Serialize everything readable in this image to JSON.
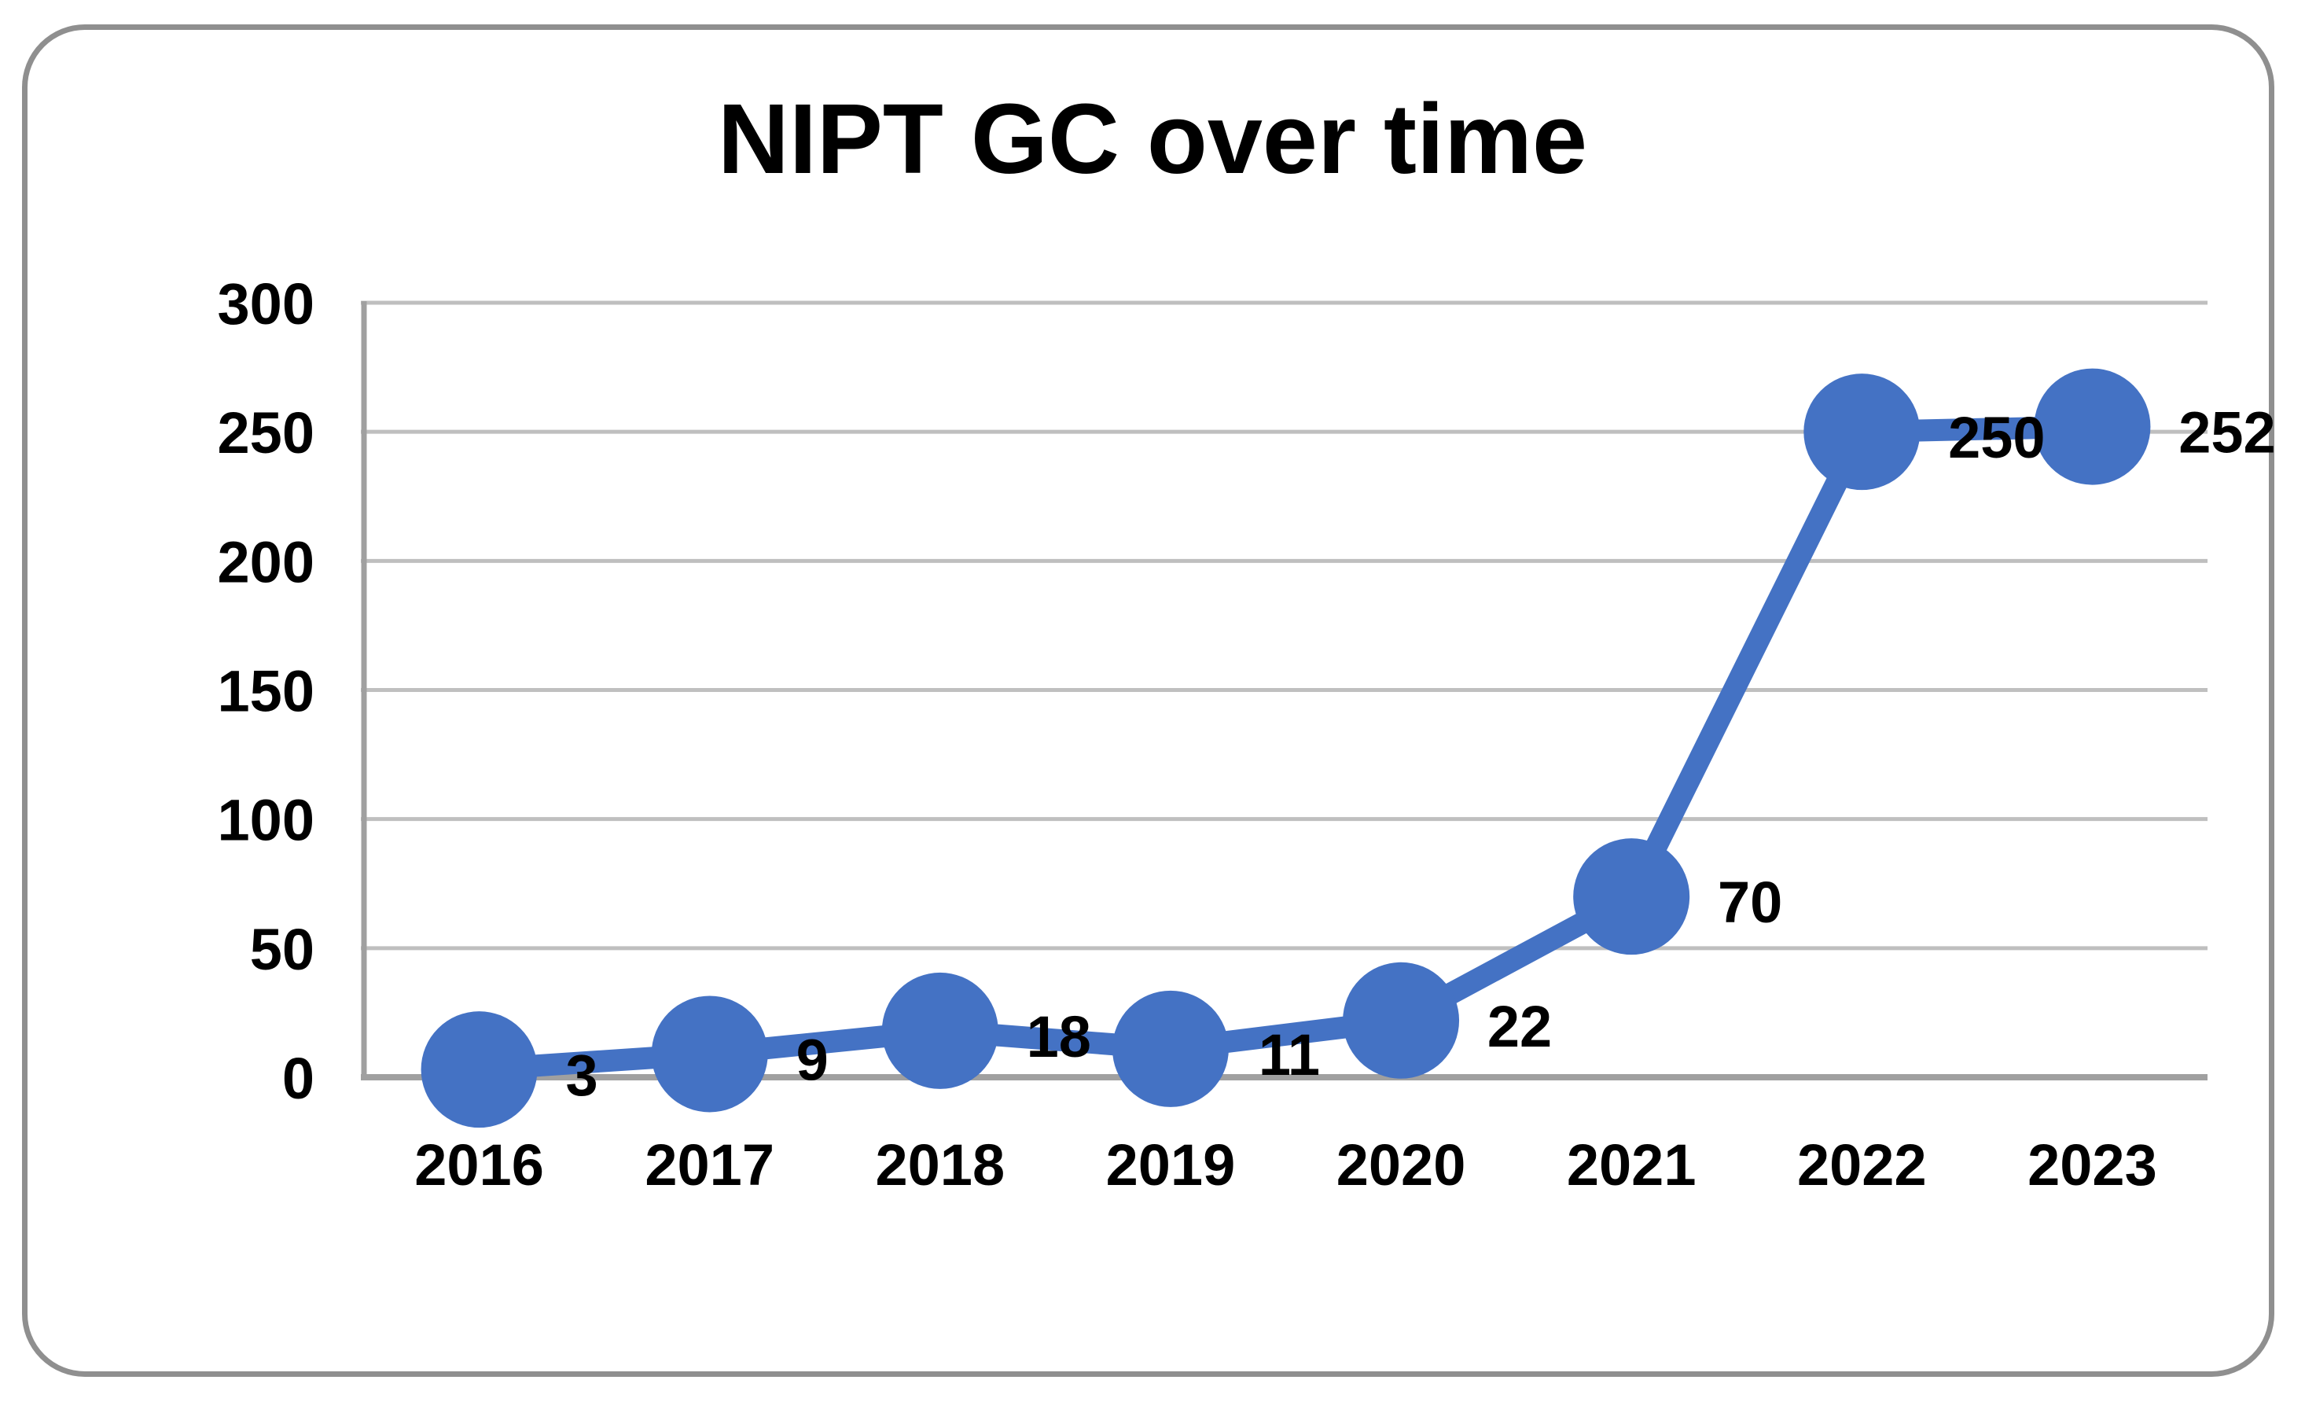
{
  "chart_data": {
    "type": "line",
    "title": "NIPT GC over time",
    "categories": [
      "2016",
      "2017",
      "2018",
      "2019",
      "2020",
      "2021",
      "2022",
      "2023"
    ],
    "values": [
      3,
      9,
      18,
      11,
      22,
      70,
      250,
      252
    ],
    "data_labels": [
      "3",
      "9",
      "18",
      "11",
      "22",
      "70",
      "250",
      "252"
    ],
    "data_label_position": "right",
    "y_ticks": [
      0,
      50,
      100,
      150,
      200,
      250,
      300
    ],
    "ylim": [
      0,
      300
    ],
    "xlabel": "",
    "ylabel": "",
    "grid": "horizontal",
    "legend": "none",
    "colors": {
      "series": "#4472C4",
      "gridline": "#BFBFBF",
      "axis": "#A0A0A0",
      "card_border": "#8F8F8F",
      "text": "#000000",
      "background": "#FFFFFF"
    }
  }
}
